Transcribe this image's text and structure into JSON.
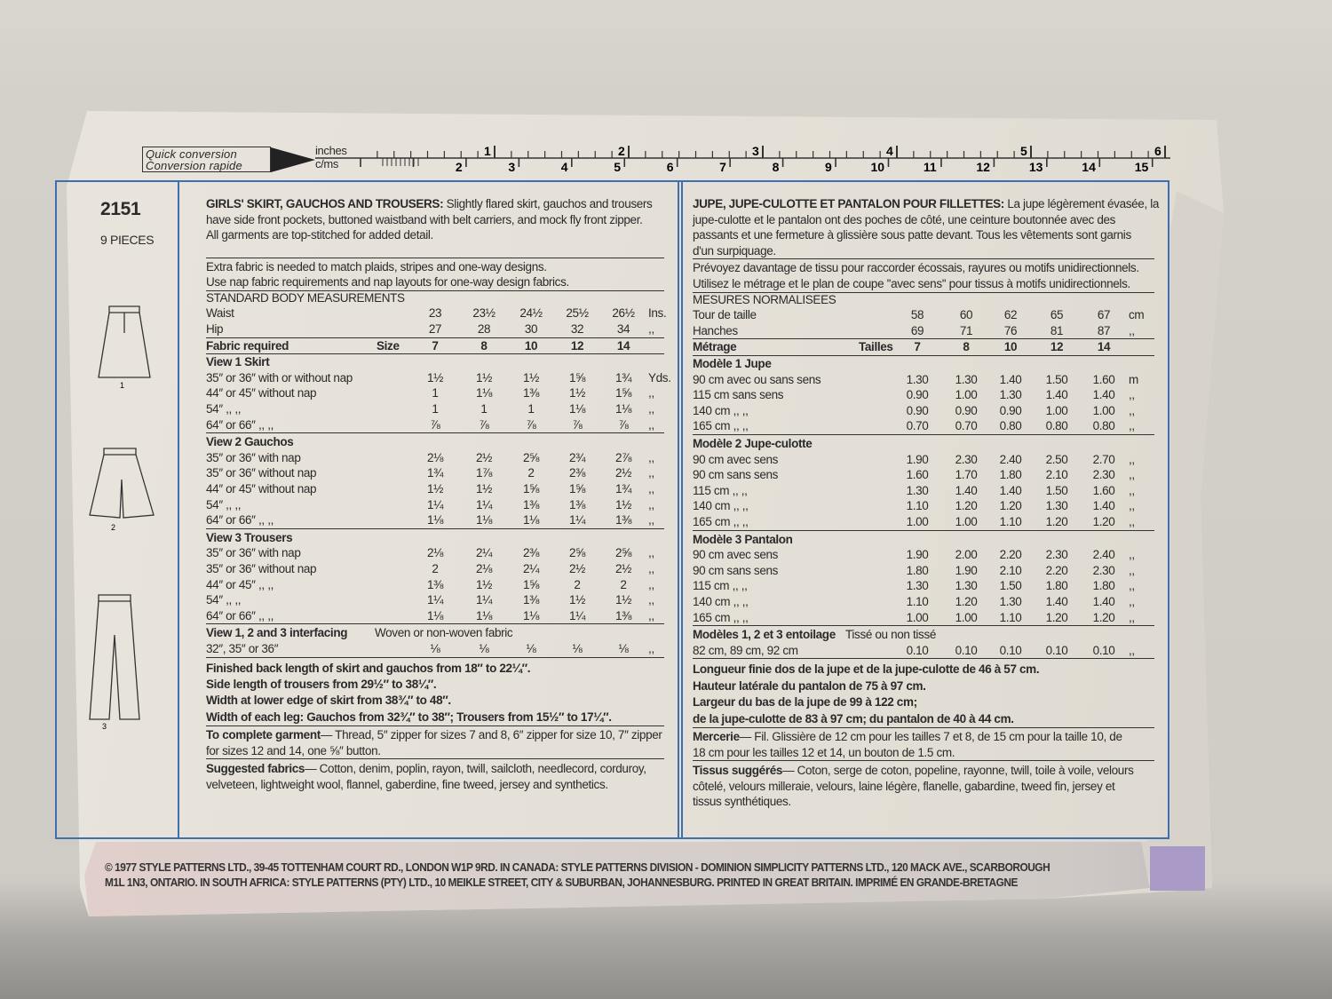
{
  "ruler": {
    "box_line1": "Quick conversion",
    "box_line2": "Conversion rapide",
    "inches_label": "inches",
    "cm_label": "c/ms",
    "inch_numbers": [
      "1",
      "2",
      "3",
      "4",
      "5",
      "6"
    ],
    "cm_numbers": [
      "2",
      "3",
      "4",
      "5",
      "6",
      "7",
      "8",
      "9",
      "10",
      "11",
      "12",
      "13",
      "14",
      "15"
    ]
  },
  "side": {
    "pattern_number": "2151",
    "pieces": "9 PIECES",
    "view_numbers": [
      "1",
      "2",
      "3"
    ]
  },
  "english": {
    "title": "GIRLS' SKIRT, GAUCHOS AND TROUSERS:",
    "description_lines": [
      "Slightly flared skirt, gauchos and trousers",
      "have side front pockets, buttoned waistband with belt carriers, and mock fly front zipper.",
      "All garments are top-stitched for added detail."
    ],
    "notes": [
      "Extra fabric is needed to match plaids, stripes and one-way designs.",
      "Use nap fabric requirements and nap layouts for one-way design fabrics."
    ],
    "measurements_heading": "STANDARD BODY MEASUREMENTS",
    "measurements": [
      {
        "label": "Waist",
        "values": [
          "23",
          "23½",
          "24½",
          "25½",
          "26½"
        ],
        "unit": "Ins."
      },
      {
        "label": "Hip",
        "values": [
          "27",
          "28",
          "30",
          "32",
          "34"
        ],
        "unit": ",,"
      }
    ],
    "fabric_label": "Fabric required",
    "size_label": "Size",
    "sizes": [
      "7",
      "8",
      "10",
      "12",
      "14"
    ],
    "sections": [
      {
        "title": "View 1   Skirt",
        "sub": "",
        "rows": [
          {
            "label": "35″ or 36″ with or without nap",
            "values": [
              "1½",
              "1½",
              "1½",
              "1⅝",
              "1¾"
            ],
            "unit": "Yds."
          },
          {
            "label": "44″ or 45″ without nap",
            "values": [
              "1",
              "1⅛",
              "1⅜",
              "1½",
              "1⅝"
            ],
            "unit": ",,"
          },
          {
            "label": "54″            ,,    ,,",
            "values": [
              "1",
              "1",
              "1",
              "1⅛",
              "1⅛"
            ],
            "unit": ",,"
          },
          {
            "label": "64″ or 66″    ,,    ,,",
            "values": [
              "⅞",
              "⅞",
              "⅞",
              "⅞",
              "⅞"
            ],
            "unit": ",,"
          }
        ]
      },
      {
        "title": "View 2   Gauchos",
        "sub": "",
        "rows": [
          {
            "label": "35″ or 36″ with nap",
            "values": [
              "2⅛",
              "2½",
              "2⅝",
              "2¾",
              "2⅞"
            ],
            "unit": ",,"
          },
          {
            "label": "35″ or 36″ without nap",
            "values": [
              "1¾",
              "1⅞",
              "2",
              "2⅜",
              "2½"
            ],
            "unit": ",,"
          },
          {
            "label": "44″ or 45″ without nap",
            "values": [
              "1½",
              "1½",
              "1⅝",
              "1⅝",
              "1¾"
            ],
            "unit": ",,"
          },
          {
            "label": "54″            ,,    ,,",
            "values": [
              "1¼",
              "1¼",
              "1⅜",
              "1⅜",
              "1½"
            ],
            "unit": ",,"
          },
          {
            "label": "64″ or 66″    ,,    ,,",
            "values": [
              "1⅛",
              "1⅛",
              "1⅛",
              "1¼",
              "1⅜"
            ],
            "unit": ",,"
          }
        ]
      },
      {
        "title": "View 3   Trousers",
        "sub": "",
        "rows": [
          {
            "label": "35″ or 36″ with nap",
            "values": [
              "2⅛",
              "2¼",
              "2⅜",
              "2⅝",
              "2⅝"
            ],
            "unit": ",,"
          },
          {
            "label": "35″ or 36″ without nap",
            "values": [
              "2",
              "2⅛",
              "2¼",
              "2½",
              "2½"
            ],
            "unit": ",,"
          },
          {
            "label": "44″ or 45″     ,,    ,,",
            "values": [
              "1⅜",
              "1½",
              "1⅝",
              "2",
              "2"
            ],
            "unit": ",,"
          },
          {
            "label": "54″            ,,    ,,",
            "values": [
              "1¼",
              "1¼",
              "1⅜",
              "1½",
              "1½"
            ],
            "unit": ",,"
          },
          {
            "label": "64″ or 66″    ,,    ,,",
            "values": [
              "1⅛",
              "1⅛",
              "1⅛",
              "1¼",
              "1⅜"
            ],
            "unit": ",,"
          }
        ]
      },
      {
        "title": "View 1, 2 and 3 interfacing",
        "sub": "Woven or non-woven fabric",
        "rows": [
          {
            "label": "32″, 35″ or 36″",
            "values": [
              "⅛",
              "⅛",
              "⅛",
              "⅛",
              "⅛"
            ],
            "unit": ",,"
          }
        ]
      }
    ],
    "finished": [
      "Finished back length of skirt and gauchos from 18″ to 22¼″.",
      "Side length of trousers from 29½″ to 38¼″.",
      "Width at lower edge of skirt from 38¾″ to 48″.",
      "Width of each leg: Gauchos from 32¾″ to 38″; Trousers from 15½″ to 17¼″."
    ],
    "complete_label": "To complete garment",
    "complete_lines": [
      "— Thread, 5″ zipper for sizes 7 and 8, 6″ zipper for size 10, 7″ zipper",
      "for sizes 12 and 14, one ⅝″ button."
    ],
    "fabrics_label": "Suggested fabrics",
    "fabrics_lines": [
      "— Cotton, denim, poplin, rayon, twill, sailcloth, needlecord, corduroy,",
      "velveteen, lightweight wool, flannel, gaberdine, fine tweed, jersey and synthetics."
    ]
  },
  "french": {
    "title": "JUPE, JUPE-CULOTTE ET PANTALON POUR FILLETTES:",
    "description_lines": [
      "La jupe légèrement évasée, la",
      "jupe-culotte et le pantalon ont des poches de côté, une ceinture boutonnée avec des",
      "passants et une fermeture à glissière sous patte devant. Tous les vêtements sont garnis",
      "d'un surpiquage."
    ],
    "notes": [
      "Prévoyez davantage de tissu pour raccorder écossais, rayures ou motifs unidirectionnels.",
      "Utilisez le métrage et le plan de coupe ''avec sens'' pour tissus à motifs unidirectionnels."
    ],
    "measurements_heading": "MESURES NORMALISEES",
    "measurements": [
      {
        "label": "Tour de taille",
        "values": [
          "58",
          "60",
          "62",
          "65",
          "67"
        ],
        "unit": "cm"
      },
      {
        "label": "Hanches",
        "values": [
          "69",
          "71",
          "76",
          "81",
          "87"
        ],
        "unit": ",,"
      }
    ],
    "fabric_label": "Métrage",
    "size_label": "Tailles",
    "sizes": [
      "7",
      "8",
      "10",
      "12",
      "14"
    ],
    "sections": [
      {
        "title": "Modèle 1   Jupe",
        "sub": "",
        "rows": [
          {
            "label": " 90 cm avec ou sans sens",
            "values": [
              "1.30",
              "1.30",
              "1.40",
              "1.50",
              "1.60"
            ],
            "unit": "m"
          },
          {
            "label": "115 cm sans sens",
            "values": [
              "0.90",
              "1.00",
              "1.30",
              "1.40",
              "1.40"
            ],
            "unit": ",,"
          },
          {
            "label": "140 cm    ,,     ,,",
            "values": [
              "0.90",
              "0.90",
              "0.90",
              "1.00",
              "1.00"
            ],
            "unit": ",,"
          },
          {
            "label": "165 cm    ,,     ,,",
            "values": [
              "0.70",
              "0.70",
              "0.80",
              "0.80",
              "0.80"
            ],
            "unit": ",,"
          }
        ]
      },
      {
        "title": "Modèle 2   Jupe-culotte",
        "sub": "",
        "rows": [
          {
            "label": " 90 cm avec sens",
            "values": [
              "1.90",
              "2.30",
              "2.40",
              "2.50",
              "2.70"
            ],
            "unit": ",,"
          },
          {
            "label": " 90 cm sans sens",
            "values": [
              "1.60",
              "1.70",
              "1.80",
              "2.10",
              "2.30"
            ],
            "unit": ",,"
          },
          {
            "label": "115 cm    ,,     ,,",
            "values": [
              "1.30",
              "1.40",
              "1.40",
              "1.50",
              "1.60"
            ],
            "unit": ",,"
          },
          {
            "label": "140 cm    ,,     ,,",
            "values": [
              "1.10",
              "1.20",
              "1.20",
              "1.30",
              "1.40"
            ],
            "unit": ",,"
          },
          {
            "label": "165 cm    ,,     ,,",
            "values": [
              "1.00",
              "1.00",
              "1.10",
              "1.20",
              "1.20"
            ],
            "unit": ",,"
          }
        ]
      },
      {
        "title": "Modèle 3   Pantalon",
        "sub": "",
        "rows": [
          {
            "label": " 90 cm avec sens",
            "values": [
              "1.90",
              "2.00",
              "2.20",
              "2.30",
              "2.40"
            ],
            "unit": ",,"
          },
          {
            "label": " 90 cm sans sens",
            "values": [
              "1.80",
              "1.90",
              "2.10",
              "2.20",
              "2.30"
            ],
            "unit": ",,"
          },
          {
            "label": "115 cm    ,,     ,,",
            "values": [
              "1.30",
              "1.30",
              "1.50",
              "1.80",
              "1.80"
            ],
            "unit": ",,"
          },
          {
            "label": "140 cm    ,,     ,,",
            "values": [
              "1.10",
              "1.20",
              "1.30",
              "1.40",
              "1.40"
            ],
            "unit": ",,"
          },
          {
            "label": "165 cm    ,,     ,,",
            "values": [
              "1.00",
              "1.00",
              "1.10",
              "1.20",
              "1.20"
            ],
            "unit": ",,"
          }
        ]
      },
      {
        "title": "Modèles 1, 2 et 3 entoilage",
        "sub": "Tissé ou non tissé",
        "rows": [
          {
            "label": "82 cm, 89 cm, 92 cm",
            "values": [
              "0.10",
              "0.10",
              "0.10",
              "0.10",
              "0.10"
            ],
            "unit": ",,"
          }
        ]
      }
    ],
    "finished": [
      "Longueur finie dos de la jupe et de la jupe-culotte de 46 à 57 cm.",
      "Hauteur latérale du pantalon de 75 à 97 cm.",
      "Largeur du bas de la jupe de 99 à 122 cm;",
      "de la jupe-culotte de 83 à 97 cm; du pantalon de 40 à 44 cm."
    ],
    "complete_label": "Mercerie",
    "complete_lines": [
      "— Fil. Glissière de 12 cm pour les tailles 7 et 8, de 15 cm pour la taille 10, de",
      "18 cm pour les tailles 12 et 14, un bouton de 1.5 cm."
    ],
    "fabrics_label": "Tissus suggérés",
    "fabrics_lines": [
      "— Coton, serge de coton, popeline, rayonne, twill, toile à voile, velours",
      "côtelé, velours milleraie, velours, laine légère, flanelle, gabardine, tweed fin, jersey et",
      "tissus synthétiques."
    ]
  },
  "footer": {
    "line1": "© 1977 STYLE PATTERNS LTD., 39-45 TOTTENHAM COURT RD., LONDON W1P 9RD. IN CANADA: STYLE PATTERNS DIVISION - DOMINION SIMPLICITY PATTERNS LTD., 120 MACK AVE., SCARBOROUGH",
    "line2": "M1L 1N3, ONTARIO. IN SOUTH AFRICA: STYLE PATTERNS (PTY) LTD., 10 MEIKLE STREET, CITY & SUBURBAN, JOHANNESBURG. PRINTED IN GREAT BRITAIN. IMPRIMÉ EN GRANDE-BRETAGNE"
  },
  "colors": {
    "border_blue": "#3f6fb3",
    "sticker_purple": "#a99ac8",
    "paper": "#e6e2da"
  }
}
